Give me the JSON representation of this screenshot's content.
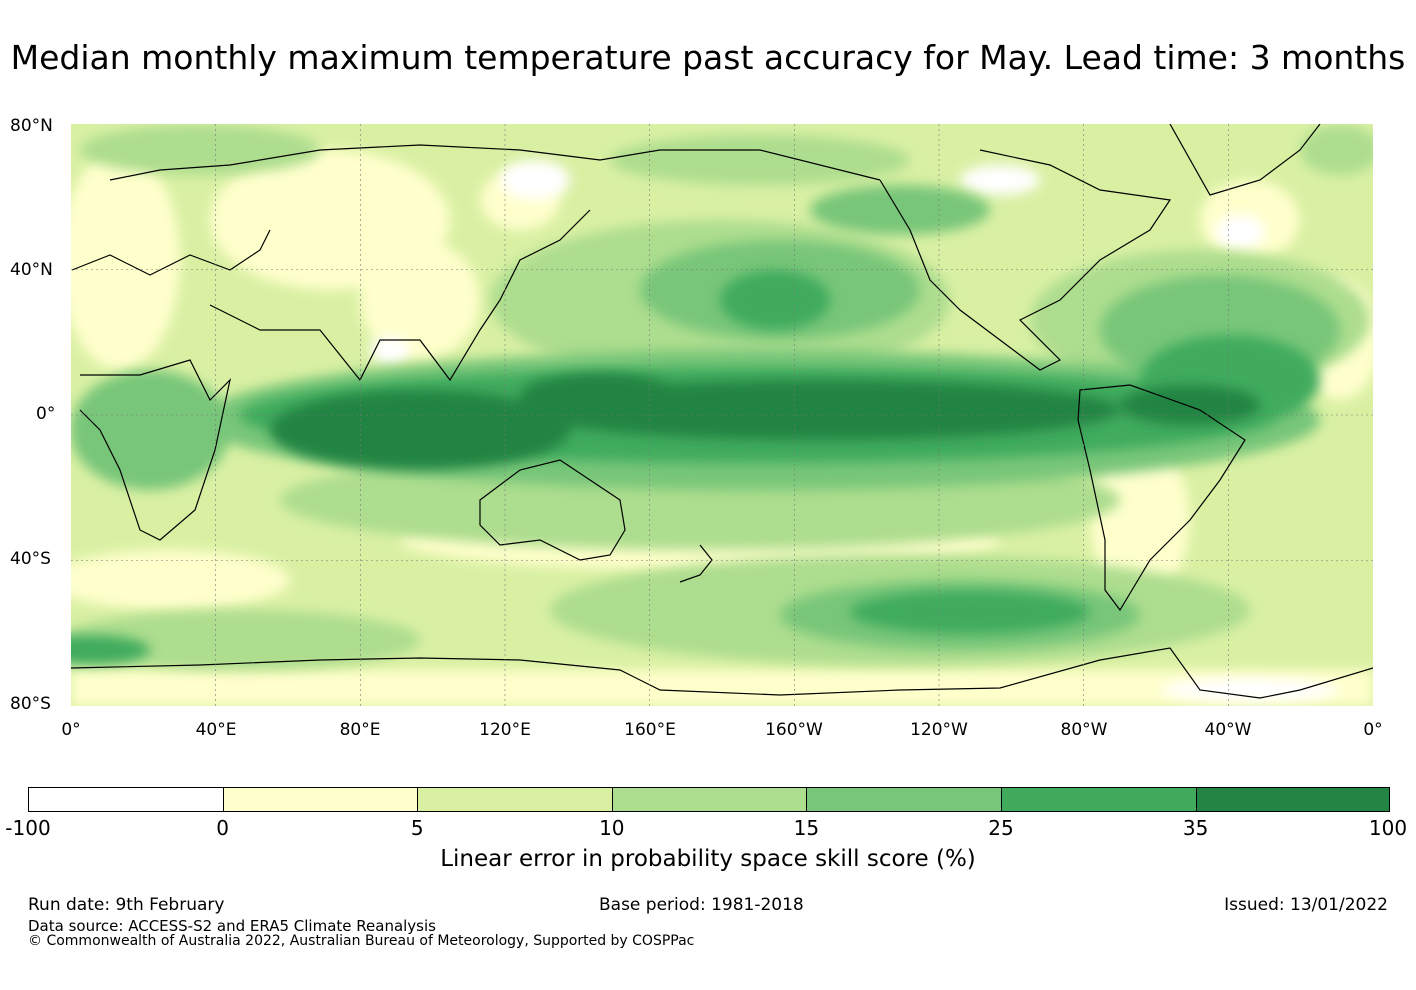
{
  "title": "Median monthly maximum temperature past accuracy for May. Lead time: 3 months",
  "map": {
    "lat_labels": [
      "80°N",
      "40°N",
      "0°",
      "40°S",
      "80°S"
    ],
    "lon_labels": [
      "0°",
      "40°E",
      "80°E",
      "120°E",
      "160°E",
      "160°W",
      "120°W",
      "80°W",
      "40°W",
      "0°"
    ]
  },
  "colorbar": {
    "title": "Linear error in probability space skill score (%)",
    "ticks": [
      "-100",
      "0",
      "5",
      "10",
      "15",
      "25",
      "35",
      "100"
    ],
    "colors": [
      "#ffffff",
      "#ffffcc",
      "#d9f0a3",
      "#addd8e",
      "#78c679",
      "#41ab5d",
      "#238443"
    ]
  },
  "footer": {
    "run_date": "Run date: 9th February",
    "base_period": "Base period: 1981-2018",
    "issued": "Issued: 13/01/2022",
    "data_source": "Data source: ACCESS-S2 and ERA5 Climate Reanalysis",
    "copyright": "© Commonwealth of Australia 2022, Australian Bureau of Meteorology, Supported by COSPPac"
  }
}
